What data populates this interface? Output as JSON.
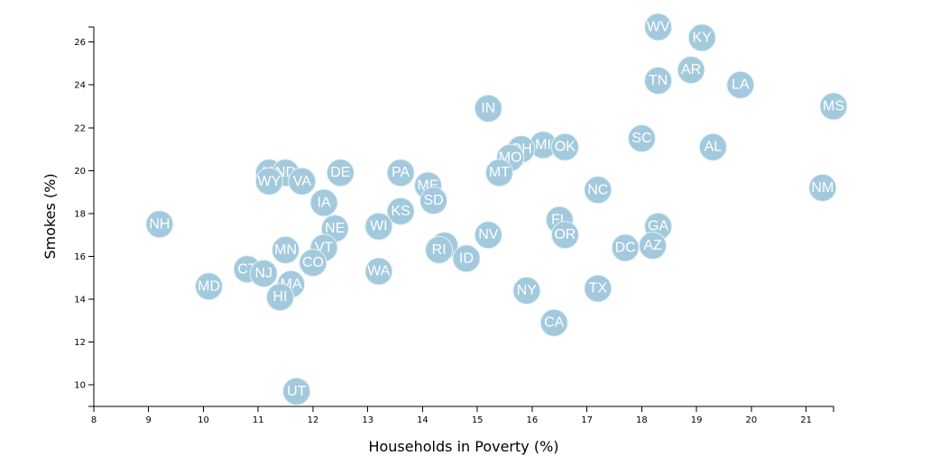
{
  "colors": {
    "marker": "#a3c9dd",
    "label": "#ffffff",
    "axis": "#000000"
  },
  "chart_data": {
    "type": "scatter",
    "xlabel": "Households in Poverty (%)",
    "ylabel": "Smokes (%)",
    "xlim": [
      8,
      21.5
    ],
    "ylim": [
      9,
      26.7
    ],
    "xticks": [
      8,
      9,
      10,
      11,
      12,
      13,
      14,
      15,
      16,
      17,
      18,
      19,
      20,
      21
    ],
    "yticks": [
      10,
      12,
      14,
      16,
      18,
      20,
      22,
      24,
      26
    ],
    "grid": false,
    "points": [
      {
        "label": "WV",
        "x": 18.3,
        "y": 26.7
      },
      {
        "label": "KY",
        "x": 19.1,
        "y": 26.2
      },
      {
        "label": "AR",
        "x": 18.9,
        "y": 24.7
      },
      {
        "label": "TN",
        "x": 18.3,
        "y": 24.2
      },
      {
        "label": "LA",
        "x": 19.8,
        "y": 24.0
      },
      {
        "label": "MS",
        "x": 21.5,
        "y": 23.0
      },
      {
        "label": "IN",
        "x": 15.2,
        "y": 22.9
      },
      {
        "label": "SC",
        "x": 18.0,
        "y": 21.5
      },
      {
        "label": "AL",
        "x": 19.3,
        "y": 21.1
      },
      {
        "label": "MI",
        "x": 16.2,
        "y": 21.2
      },
      {
        "label": "OK",
        "x": 16.6,
        "y": 21.1
      },
      {
        "label": "OH",
        "x": 15.8,
        "y": 21.0
      },
      {
        "label": "MO",
        "x": 15.6,
        "y": 20.6
      },
      {
        "label": "MT",
        "x": 15.4,
        "y": 19.9
      },
      {
        "label": "PA",
        "x": 13.6,
        "y": 19.9
      },
      {
        "label": "DE",
        "x": 12.5,
        "y": 19.9
      },
      {
        "label": "AK",
        "x": 11.2,
        "y": 19.9
      },
      {
        "label": "ND",
        "x": 11.5,
        "y": 19.9
      },
      {
        "label": "WY",
        "x": 11.2,
        "y": 19.5
      },
      {
        "label": "VA",
        "x": 11.8,
        "y": 19.5
      },
      {
        "label": "ME",
        "x": 14.1,
        "y": 19.3
      },
      {
        "label": "NC",
        "x": 17.2,
        "y": 19.1
      },
      {
        "label": "NM",
        "x": 21.3,
        "y": 19.2
      },
      {
        "label": "SD",
        "x": 14.2,
        "y": 18.6
      },
      {
        "label": "IA",
        "x": 12.2,
        "y": 18.5
      },
      {
        "label": "KS",
        "x": 13.6,
        "y": 18.1
      },
      {
        "label": "NH",
        "x": 9.2,
        "y": 17.5
      },
      {
        "label": "FL",
        "x": 16.5,
        "y": 17.7
      },
      {
        "label": "GA",
        "x": 18.3,
        "y": 17.4
      },
      {
        "label": "WI",
        "x": 13.2,
        "y": 17.4
      },
      {
        "label": "NE",
        "x": 12.4,
        "y": 17.3
      },
      {
        "label": "NV",
        "x": 15.2,
        "y": 17.0
      },
      {
        "label": "OR",
        "x": 16.6,
        "y": 17.0
      },
      {
        "label": "DC",
        "x": 17.7,
        "y": 16.4
      },
      {
        "label": "AZ",
        "x": 18.2,
        "y": 16.5
      },
      {
        "label": "IL",
        "x": 14.4,
        "y": 16.5
      },
      {
        "label": "RI",
        "x": 14.3,
        "y": 16.3
      },
      {
        "label": "VT",
        "x": 12.2,
        "y": 16.4
      },
      {
        "label": "MN",
        "x": 11.5,
        "y": 16.3
      },
      {
        "label": "ID",
        "x": 14.8,
        "y": 15.9
      },
      {
        "label": "CO",
        "x": 12.0,
        "y": 15.7
      },
      {
        "label": "CT",
        "x": 10.8,
        "y": 15.4
      },
      {
        "label": "WA",
        "x": 13.2,
        "y": 15.3
      },
      {
        "label": "NJ",
        "x": 11.1,
        "y": 15.2
      },
      {
        "label": "MD",
        "x": 10.1,
        "y": 14.6
      },
      {
        "label": "MA",
        "x": 11.6,
        "y": 14.7
      },
      {
        "label": "TX",
        "x": 17.2,
        "y": 14.5
      },
      {
        "label": "NY",
        "x": 15.9,
        "y": 14.4
      },
      {
        "label": "HI",
        "x": 11.4,
        "y": 14.1
      },
      {
        "label": "CA",
        "x": 16.4,
        "y": 12.9
      },
      {
        "label": "UT",
        "x": 11.7,
        "y": 9.7
      }
    ]
  }
}
